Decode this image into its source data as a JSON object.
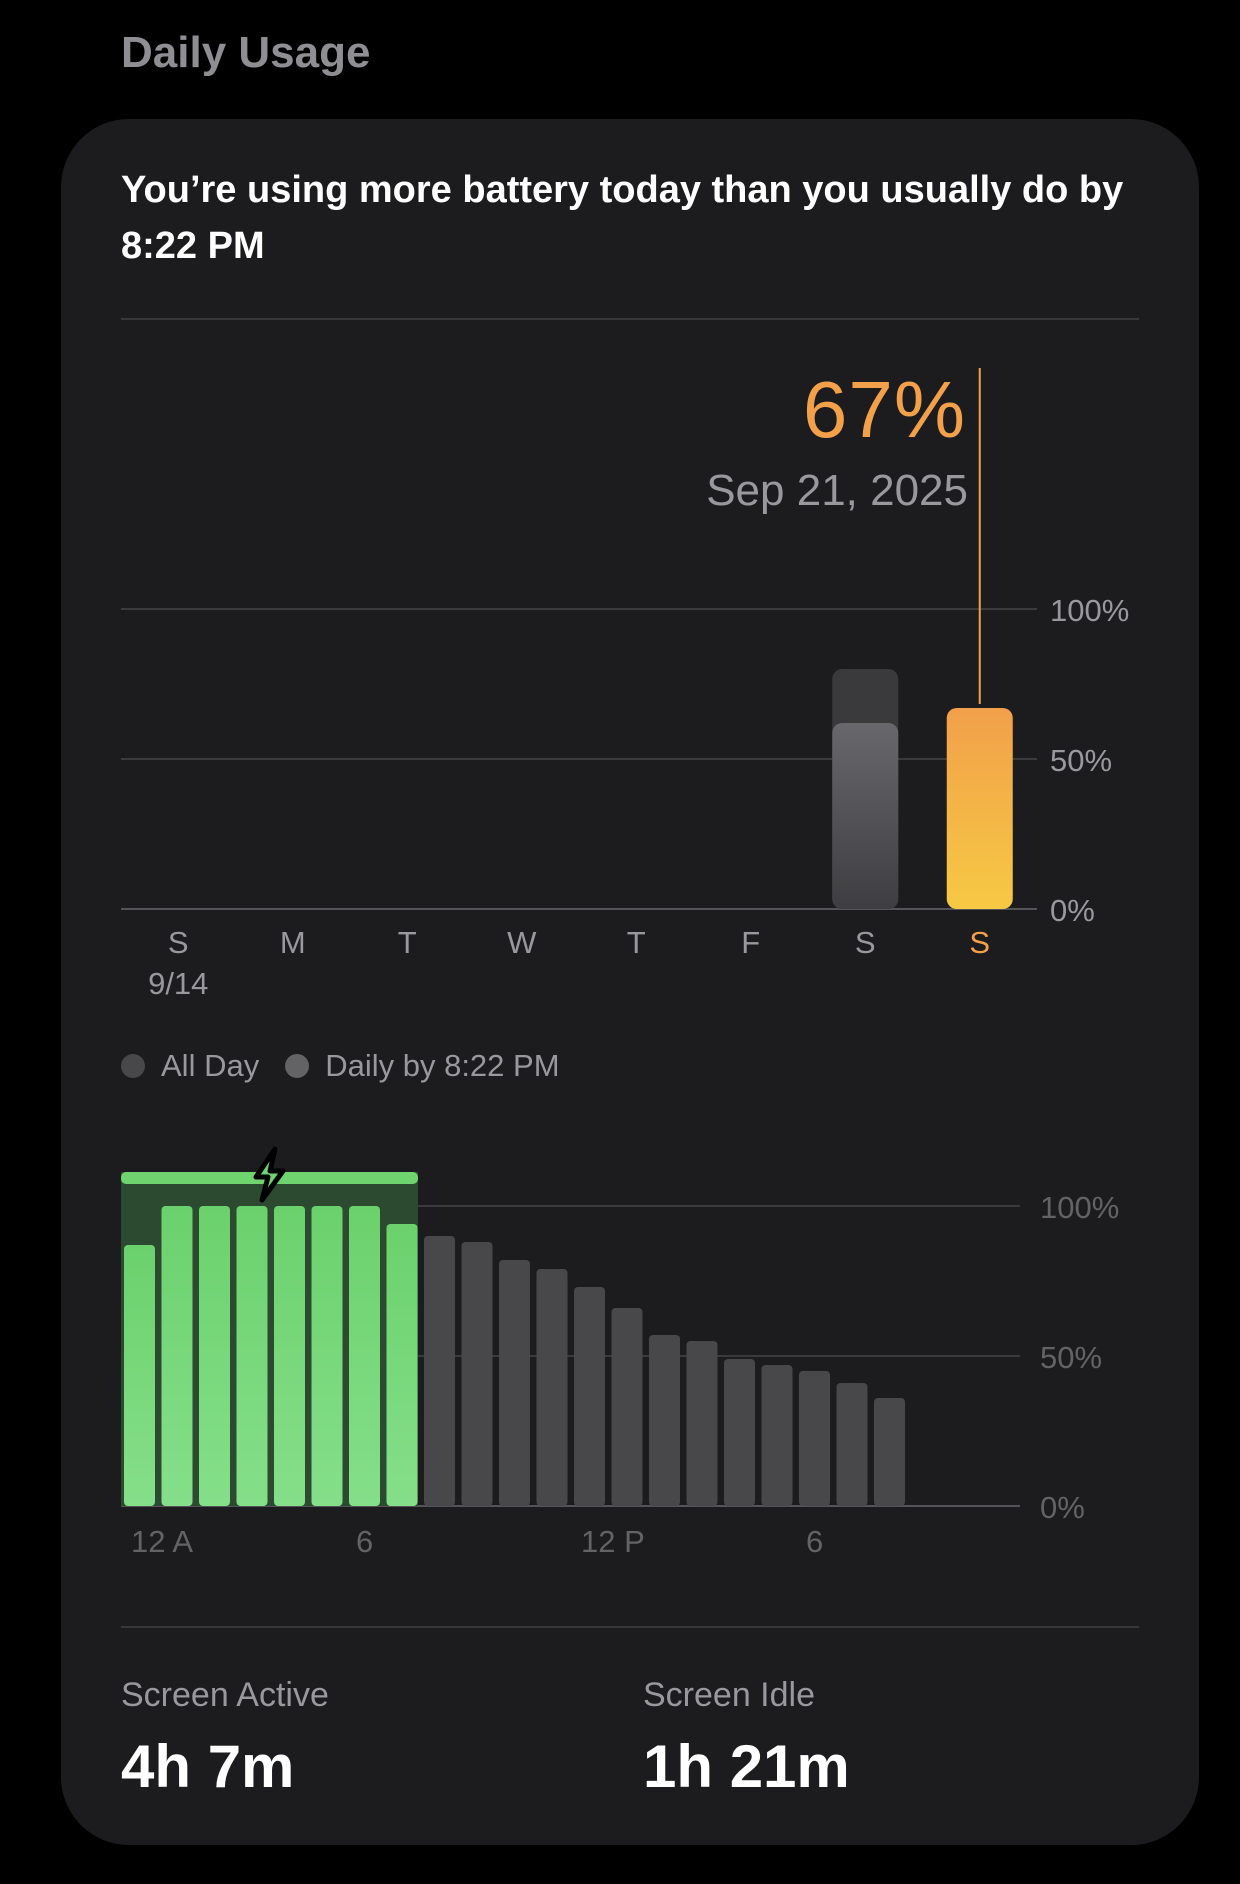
{
  "section_title": "Daily Usage",
  "headline": "You’re using more battery today than you usually do by 8:22 PM",
  "selected": {
    "value_label": "67%",
    "date_label": "Sep 21, 2025"
  },
  "colors": {
    "accent_orange": "#f2a04a",
    "accent_yellow": "#f6c944",
    "charging_green": "#6fd36e",
    "bar_gray": "#48484a",
    "bar_light_gray": "#636366"
  },
  "legend": [
    {
      "label": "All Day",
      "color": "#48484a"
    },
    {
      "label": "Daily by 8:22 PM",
      "color": "#636366"
    }
  ],
  "weekly_chart": {
    "type": "bar",
    "categories": [
      "S",
      "M",
      "T",
      "W",
      "T",
      "F",
      "S",
      "S"
    ],
    "date_sublabel": "9/14",
    "y_ticks": [
      "100%",
      "50%",
      "0%"
    ],
    "ylim": [
      0,
      100
    ],
    "series": [
      {
        "name": "All Day",
        "values": [
          null,
          null,
          null,
          null,
          null,
          null,
          80,
          null
        ]
      },
      {
        "name": "Daily by 8:22 PM",
        "values": [
          null,
          null,
          null,
          null,
          null,
          null,
          62,
          67
        ]
      }
    ],
    "selected_index": 7
  },
  "daily_chart": {
    "type": "bar",
    "x_tick_labels": [
      "12 A",
      "6",
      "12 P",
      "6"
    ],
    "y_ticks": [
      "100%",
      "50%",
      "0%"
    ],
    "ylim": [
      0,
      100
    ],
    "hourly_levels": [
      87,
      100,
      100,
      100,
      100,
      100,
      100,
      94,
      90,
      88,
      82,
      79,
      73,
      66,
      57,
      55,
      49,
      47,
      45,
      41,
      36
    ],
    "charging_hours": 8
  },
  "stats": [
    {
      "label": "Screen Active",
      "value": "4h 7m"
    },
    {
      "label": "Screen Idle",
      "value": "1h 21m"
    }
  ]
}
